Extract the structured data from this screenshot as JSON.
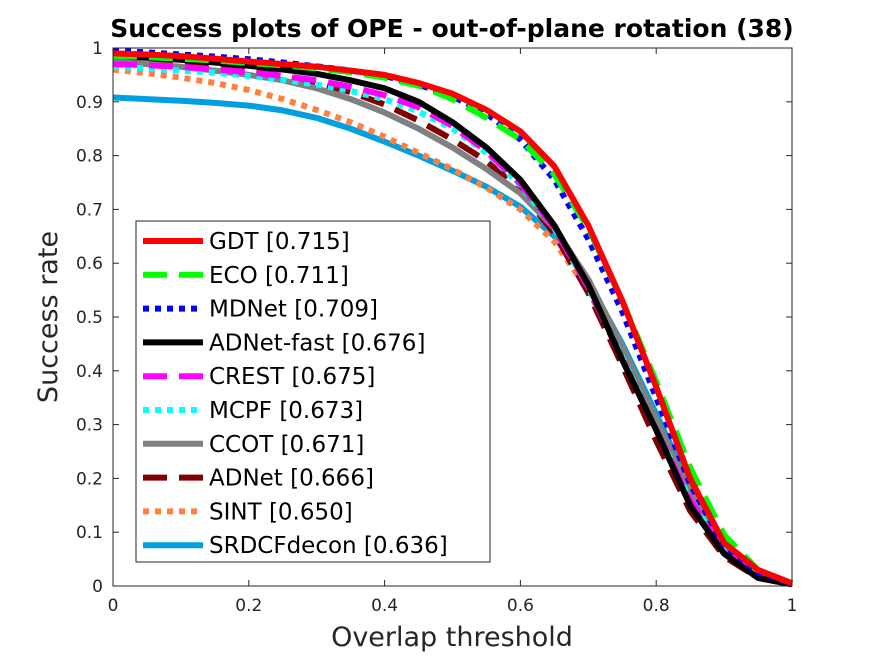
{
  "chart_data": {
    "type": "line",
    "title": "Success plots of OPE - out-of-plane rotation (38)",
    "xlabel": "Overlap threshold",
    "ylabel": "Success rate",
    "xlim": [
      0,
      1
    ],
    "ylim": [
      0,
      1
    ],
    "xticks": [
      0,
      0.2,
      0.4,
      0.6,
      0.8,
      1
    ],
    "xtick_labels": [
      "0",
      "0.2",
      "0.4",
      "0.6",
      "0.8",
      "1"
    ],
    "yticks": [
      0,
      0.1,
      0.2,
      0.3,
      0.4,
      0.5,
      0.6,
      0.7,
      0.8,
      0.9,
      1
    ],
    "ytick_labels": [
      "0",
      "0.1",
      "0.2",
      "0.3",
      "0.4",
      "0.5",
      "0.6",
      "0.7",
      "0.8",
      "0.9",
      "1"
    ],
    "grid": false,
    "legend_position": "center-left",
    "x": [
      0,
      0.05,
      0.1,
      0.15,
      0.2,
      0.25,
      0.3,
      0.35,
      0.4,
      0.45,
      0.5,
      0.55,
      0.6,
      0.65,
      0.7,
      0.75,
      0.8,
      0.85,
      0.9,
      0.95,
      1
    ],
    "series": [
      {
        "name": "GDT",
        "label": "GDT [0.715]",
        "color": "#ff0000",
        "dash": "solid",
        "values": [
          0.99,
          0.988,
          0.985,
          0.98,
          0.975,
          0.97,
          0.965,
          0.958,
          0.95,
          0.935,
          0.915,
          0.885,
          0.845,
          0.78,
          0.67,
          0.53,
          0.37,
          0.2,
          0.08,
          0.03,
          0.005
        ]
      },
      {
        "name": "ECO",
        "label": "ECO [0.711]",
        "color": "#00ff00",
        "dash": "dash",
        "values": [
          0.985,
          0.983,
          0.98,
          0.977,
          0.972,
          0.968,
          0.962,
          0.955,
          0.945,
          0.93,
          0.905,
          0.87,
          0.83,
          0.765,
          0.665,
          0.53,
          0.38,
          0.22,
          0.095,
          0.03,
          0.005
        ]
      },
      {
        "name": "MDNet",
        "label": "MDNet [0.709]",
        "color": "#0000ff",
        "dash": "dot",
        "values": [
          0.995,
          0.992,
          0.988,
          0.984,
          0.979,
          0.973,
          0.966,
          0.958,
          0.948,
          0.932,
          0.91,
          0.878,
          0.83,
          0.755,
          0.645,
          0.51,
          0.35,
          0.19,
          0.075,
          0.025,
          0.005
        ]
      },
      {
        "name": "ADNet-fast",
        "label": "ADNet-fast [0.676]",
        "color": "#000000",
        "dash": "solid",
        "values": [
          0.985,
          0.982,
          0.978,
          0.973,
          0.967,
          0.96,
          0.952,
          0.94,
          0.925,
          0.9,
          0.862,
          0.815,
          0.755,
          0.67,
          0.56,
          0.42,
          0.29,
          0.15,
          0.06,
          0.015,
          0.003
        ]
      },
      {
        "name": "CREST",
        "label": "CREST [0.675]",
        "color": "#ff00ff",
        "dash": "dash",
        "values": [
          0.97,
          0.968,
          0.965,
          0.96,
          0.955,
          0.948,
          0.94,
          0.928,
          0.912,
          0.89,
          0.855,
          0.808,
          0.748,
          0.665,
          0.555,
          0.42,
          0.29,
          0.16,
          0.065,
          0.02,
          0.004
        ]
      },
      {
        "name": "MCPF",
        "label": "MCPF [0.673]",
        "color": "#00ffff",
        "dash": "dot",
        "values": [
          0.965,
          0.962,
          0.958,
          0.954,
          0.948,
          0.941,
          0.932,
          0.92,
          0.905,
          0.882,
          0.85,
          0.805,
          0.745,
          0.665,
          0.555,
          0.425,
          0.29,
          0.16,
          0.065,
          0.02,
          0.004
        ]
      },
      {
        "name": "CCOT",
        "label": "CCOT [0.671]",
        "color": "#808080",
        "dash": "solid",
        "values": [
          0.975,
          0.97,
          0.965,
          0.958,
          0.95,
          0.94,
          0.925,
          0.905,
          0.88,
          0.85,
          0.815,
          0.775,
          0.73,
          0.665,
          0.57,
          0.445,
          0.31,
          0.175,
          0.07,
          0.02,
          0.004
        ]
      },
      {
        "name": "ADNet",
        "label": "ADNet [0.666]",
        "color": "#800000",
        "dash": "dash",
        "values": [
          0.98,
          0.976,
          0.971,
          0.965,
          0.958,
          0.948,
          0.935,
          0.918,
          0.895,
          0.865,
          0.83,
          0.79,
          0.735,
          0.655,
          0.545,
          0.41,
          0.27,
          0.14,
          0.055,
          0.015,
          0.003
        ]
      },
      {
        "name": "SINT",
        "label": "SINT [0.650]",
        "color": "#ff8040",
        "dash": "dot",
        "values": [
          0.96,
          0.953,
          0.945,
          0.935,
          0.922,
          0.905,
          0.885,
          0.862,
          0.835,
          0.805,
          0.775,
          0.74,
          0.7,
          0.64,
          0.55,
          0.425,
          0.29,
          0.16,
          0.065,
          0.02,
          0.004
        ]
      },
      {
        "name": "SRDCFdecon",
        "label": "SRDCFdecon [0.636]",
        "color": "#00a0e0",
        "dash": "solid",
        "values": [
          0.908,
          0.905,
          0.902,
          0.898,
          0.893,
          0.884,
          0.87,
          0.85,
          0.826,
          0.8,
          0.772,
          0.742,
          0.705,
          0.65,
          0.565,
          0.45,
          0.32,
          0.185,
          0.075,
          0.022,
          0.004
        ]
      }
    ]
  }
}
